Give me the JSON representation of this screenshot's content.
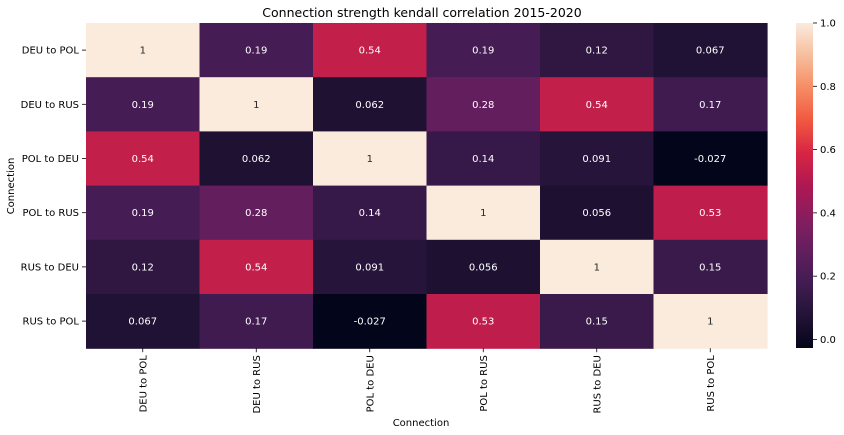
{
  "chart_data": {
    "type": "heatmap",
    "title": "Connection strength kendall correlation 2015-2020",
    "xlabel": "Connection",
    "ylabel": "Connection",
    "x_categories": [
      "DEU to POL",
      "DEU to RUS",
      "POL to DEU",
      "POL to RUS",
      "RUS to DEU",
      "RUS to POL"
    ],
    "y_categories": [
      "DEU to POL",
      "DEU to RUS",
      "POL to DEU",
      "POL to RUS",
      "RUS to DEU",
      "RUS to POL"
    ],
    "values": [
      [
        1,
        0.19,
        0.54,
        0.19,
        0.12,
        0.067
      ],
      [
        0.19,
        1,
        0.062,
        0.28,
        0.54,
        0.17
      ],
      [
        0.54,
        0.062,
        1,
        0.14,
        0.091,
        -0.027
      ],
      [
        0.19,
        0.28,
        0.14,
        1,
        0.056,
        0.53
      ],
      [
        0.12,
        0.54,
        0.091,
        0.056,
        1,
        0.15
      ],
      [
        0.067,
        0.17,
        -0.027,
        0.53,
        0.15,
        1
      ]
    ],
    "cell_labels": [
      [
        "1",
        "0.19",
        "0.54",
        "0.19",
        "0.12",
        "0.067"
      ],
      [
        "0.19",
        "1",
        "0.062",
        "0.28",
        "0.54",
        "0.17"
      ],
      [
        "0.54",
        "0.062",
        "1",
        "0.14",
        "0.091",
        "-0.027"
      ],
      [
        "0.19",
        "0.28",
        "0.14",
        "1",
        "0.056",
        "0.53"
      ],
      [
        "0.12",
        "0.54",
        "0.091",
        "0.056",
        "1",
        "0.15"
      ],
      [
        "0.067",
        "0.17",
        "-0.027",
        "0.53",
        "0.15",
        "1"
      ]
    ],
    "value_range": [
      -0.027,
      1
    ],
    "colormap": "rocket",
    "colorbar_ticks": [
      "0.0",
      "0.2",
      "0.4",
      "0.6",
      "0.8",
      "1.0"
    ],
    "colorbar_tick_values": [
      0,
      0.2,
      0.4,
      0.6,
      0.8,
      1.0
    ],
    "grid": false
  }
}
